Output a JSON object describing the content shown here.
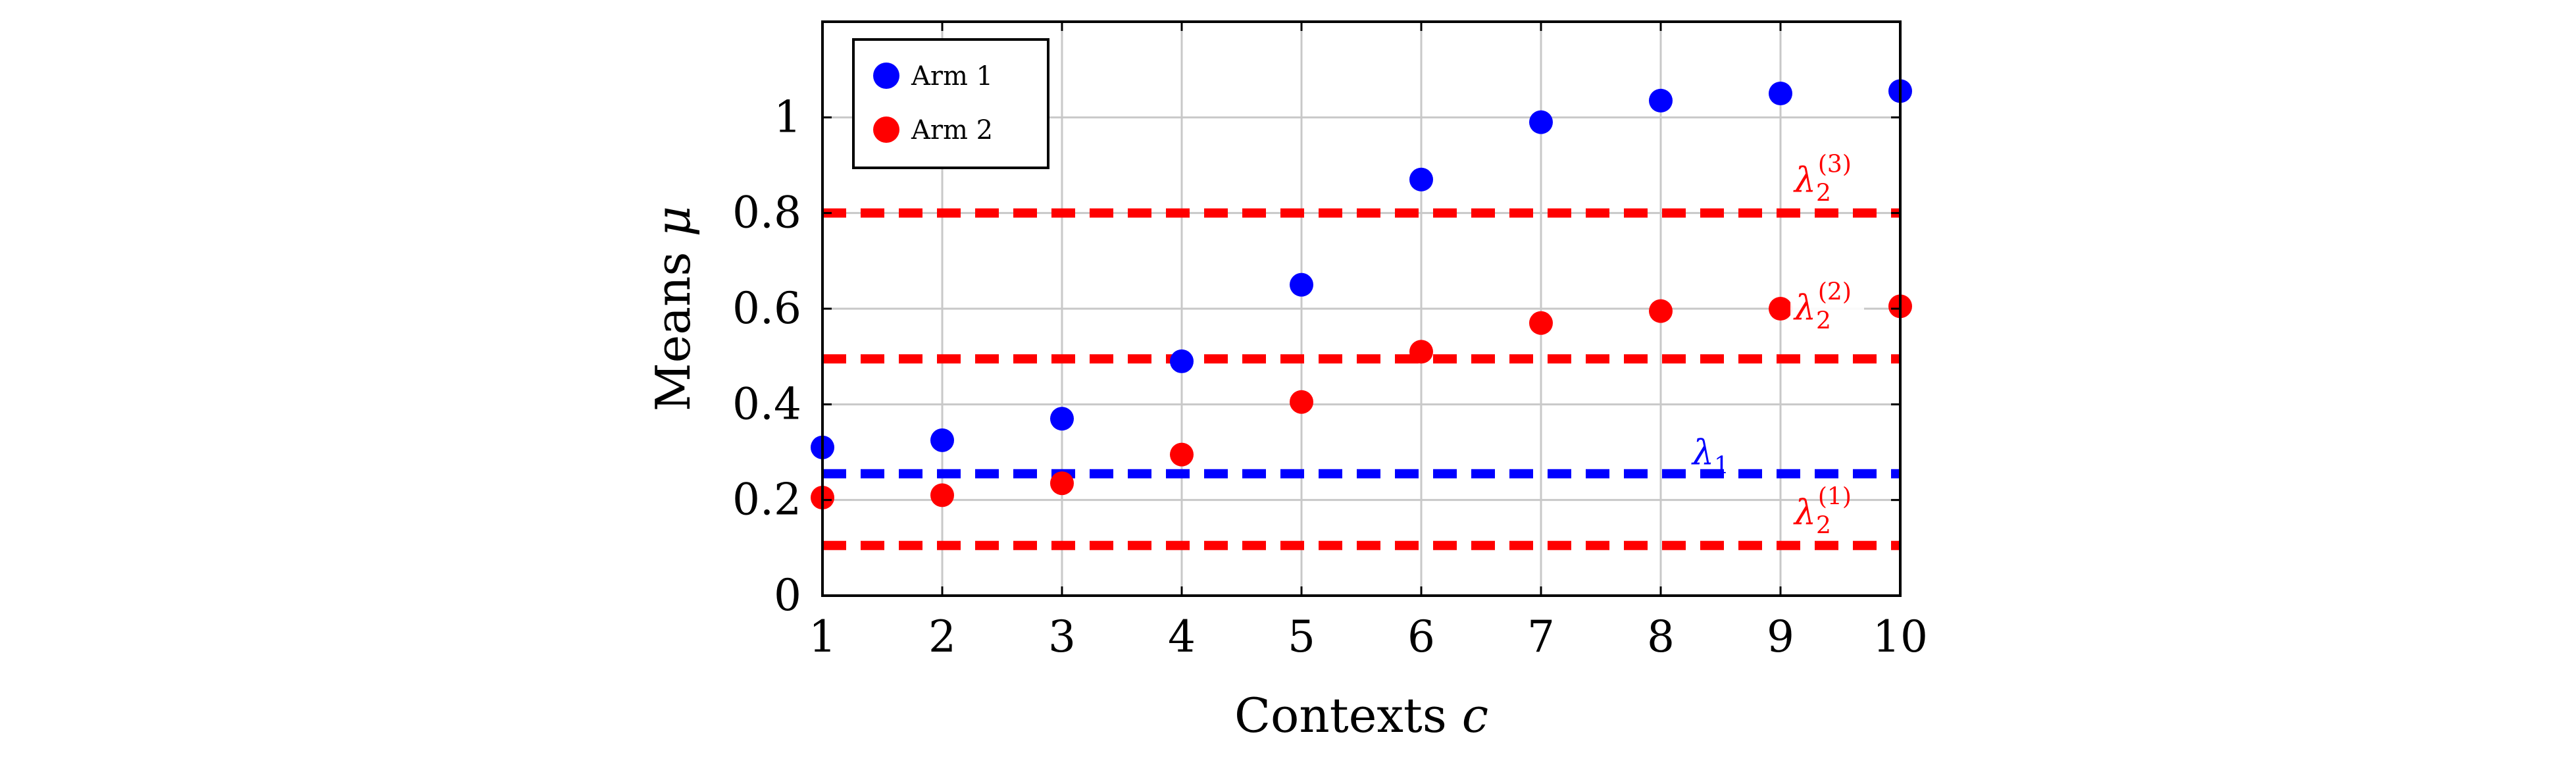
{
  "chart_data": {
    "type": "scatter",
    "title": "",
    "xlabel": "Contexts",
    "xlabel_var": "c",
    "ylabel": "Means",
    "ylabel_var": "μ",
    "x": [
      1,
      2,
      3,
      4,
      5,
      6,
      7,
      8,
      9,
      10
    ],
    "xlim": [
      1,
      10
    ],
    "ylim": [
      0,
      1.2
    ],
    "xticks": [
      "1",
      "2",
      "3",
      "4",
      "5",
      "6",
      "7",
      "8",
      "9",
      "10"
    ],
    "yticks": [
      {
        "value": 0,
        "label": "0"
      },
      {
        "value": 0.2,
        "label": "0.2"
      },
      {
        "value": 0.4,
        "label": "0.4"
      },
      {
        "value": 0.6,
        "label": "0.6"
      },
      {
        "value": 0.8,
        "label": "0.8"
      },
      {
        "value": 1,
        "label": "1"
      }
    ],
    "grid": true,
    "legend_position": "top-left",
    "series": [
      {
        "name": "Arm 1",
        "color": "#0000ff",
        "values": [
          0.31,
          0.325,
          0.37,
          0.49,
          0.65,
          0.87,
          0.99,
          1.035,
          1.05,
          1.055
        ]
      },
      {
        "name": "Arm 2",
        "color": "#ff0000",
        "values": [
          0.205,
          0.21,
          0.235,
          0.295,
          0.405,
          0.51,
          0.57,
          0.595,
          0.6,
          0.605
        ]
      }
    ],
    "thresholds": [
      {
        "base": "λ",
        "sub": "2",
        "sup": "(3)",
        "value": 0.8,
        "color": "#ff0000"
      },
      {
        "base": "λ",
        "sub": "2",
        "sup": "(2)",
        "value": 0.495,
        "color": "#ff0000"
      },
      {
        "base": "λ",
        "sub": "1",
        "sup": "",
        "value": 0.255,
        "color": "#0000ff"
      },
      {
        "base": "λ",
        "sub": "2",
        "sup": "(1)",
        "value": 0.105,
        "color": "#ff0000"
      }
    ]
  }
}
